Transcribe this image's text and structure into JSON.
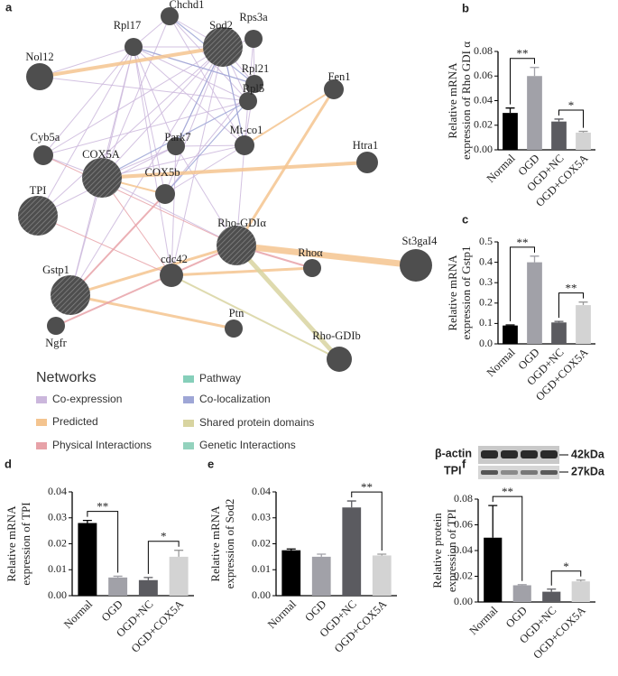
{
  "network": {
    "label": "a",
    "nodes": [
      "Chchd1",
      "Rpl17",
      "Sod2",
      "Rps3a",
      "Rpl21",
      "Rpl5",
      "Nol12",
      "Fen1",
      "Cyb5a",
      "COX5A",
      "Park7",
      "Mt-co1",
      "Htra1",
      "COX5b",
      "TPI",
      "Rho-GDIα",
      "St3gaI4",
      "Rhoα",
      "cdc42",
      "Gstp1",
      "Ptn",
      "Ngfr",
      "Rho-GDIb"
    ],
    "legend_title": "Networks",
    "legend": [
      {
        "name": "Co-expression",
        "color": "#cbb7dc"
      },
      {
        "name": "Predicted",
        "color": "#f4c48f"
      },
      {
        "name": "Physical Interactions",
        "color": "#e7a2a8"
      },
      {
        "name": "Pathway",
        "color": "#86cfba"
      },
      {
        "name": "Co-localization",
        "color": "#9ea6d6"
      },
      {
        "name": "Shared protein domains",
        "color": "#d8d4a0"
      },
      {
        "name": "Genetic Interactions",
        "color": "#93d2bd"
      }
    ]
  },
  "western_blot": {
    "bands": [
      "β-actin",
      "TPI"
    ],
    "sizes": [
      "42kDa",
      "27kDa"
    ]
  },
  "chart_data": [
    {
      "type": "bar",
      "label": "b",
      "y_label": [
        "Relative mRNA",
        "expression of Rho GDI α"
      ],
      "categories": [
        "Normal",
        "OGD",
        "OGD+NC",
        "OGD+COX5A"
      ],
      "values": [
        0.03,
        0.06,
        0.023,
        0.014
      ],
      "errors": [
        0.004,
        0.007,
        0.002,
        0.001
      ],
      "colors": [
        "#000000",
        "#a1a1a8",
        "#5b5b60",
        "#d3d3d3"
      ],
      "ylim": [
        0,
        0.08
      ],
      "yticks": [
        {
          "value": 0,
          "label": "0.00"
        },
        {
          "value": 0.02,
          "label": "0.02"
        },
        {
          "value": 0.04,
          "label": "0.04"
        },
        {
          "value": 0.06,
          "label": "0.06"
        },
        {
          "value": 0.08,
          "label": "0.08"
        }
      ],
      "annotations": [
        {
          "text": "**",
          "between": [
            "Normal",
            "OGD"
          ]
        },
        {
          "text": "*",
          "between": [
            "OGD+NC",
            "OGD+COX5A"
          ]
        }
      ]
    },
    {
      "type": "bar",
      "label": "c",
      "y_label": [
        "Relative mRNA",
        "expression of Gstp1"
      ],
      "categories": [
        "Normal",
        "OGD",
        "OGD+NC",
        "OGD+COX5A"
      ],
      "values": [
        0.09,
        0.4,
        0.105,
        0.19
      ],
      "errors": [
        0.003,
        0.03,
        0.005,
        0.015
      ],
      "colors": [
        "#000000",
        "#a1a1a8",
        "#5b5b60",
        "#d3d3d3"
      ],
      "ylim": [
        0,
        0.5
      ],
      "yticks": [
        {
          "value": 0,
          "label": "0.0"
        },
        {
          "value": 0.1,
          "label": "0.1"
        },
        {
          "value": 0.2,
          "label": "0.2"
        },
        {
          "value": 0.3,
          "label": "0.3"
        },
        {
          "value": 0.4,
          "label": "0.4"
        },
        {
          "value": 0.5,
          "label": "0.5"
        }
      ],
      "annotations": [
        {
          "text": "**",
          "between": [
            "Normal",
            "OGD"
          ]
        },
        {
          "text": "**",
          "between": [
            "OGD+NC",
            "OGD+COX5A"
          ]
        }
      ]
    },
    {
      "type": "bar",
      "label": "d",
      "y_label": [
        "Relative mRNA",
        "expression of TPI"
      ],
      "categories": [
        "Normal",
        "OGD",
        "OGD+NC",
        "OGD+COX5A"
      ],
      "values": [
        0.028,
        0.007,
        0.006,
        0.015
      ],
      "errors": [
        0.001,
        0.0005,
        0.001,
        0.0025
      ],
      "colors": [
        "#000000",
        "#a1a1a8",
        "#5b5b60",
        "#d3d3d3"
      ],
      "ylim": [
        0,
        0.04
      ],
      "yticks": [
        {
          "value": 0,
          "label": "0.00"
        },
        {
          "value": 0.01,
          "label": "0.01"
        },
        {
          "value": 0.02,
          "label": "0.02"
        },
        {
          "value": 0.03,
          "label": "0.03"
        },
        {
          "value": 0.04,
          "label": "0.04"
        }
      ],
      "annotations": [
        {
          "text": "**",
          "between": [
            "Normal",
            "OGD"
          ]
        },
        {
          "text": "*",
          "between": [
            "OGD+NC",
            "OGD+COX5A"
          ]
        }
      ]
    },
    {
      "type": "bar",
      "label": "e",
      "y_label": [
        "Relative mRNA",
        "expression of Sod2"
      ],
      "categories": [
        "Normal",
        "OGD",
        "OGD+NC",
        "OGD+COX5A"
      ],
      "values": [
        0.0175,
        0.015,
        0.034,
        0.0155
      ],
      "errors": [
        0.0005,
        0.001,
        0.0025,
        0.0005
      ],
      "colors": [
        "#000000",
        "#a1a1a8",
        "#5b5b60",
        "#d3d3d3"
      ],
      "ylim": [
        0,
        0.04
      ],
      "yticks": [
        {
          "value": 0,
          "label": "0.00"
        },
        {
          "value": 0.01,
          "label": "0.01"
        },
        {
          "value": 0.02,
          "label": "0.02"
        },
        {
          "value": 0.03,
          "label": "0.03"
        },
        {
          "value": 0.04,
          "label": "0.04"
        }
      ],
      "annotations": [
        {
          "text": "**",
          "between": [
            "OGD+NC",
            "OGD+COX5A"
          ]
        }
      ]
    },
    {
      "type": "bar",
      "label": "f",
      "y_label": [
        "Relative protein",
        "expression of TPI"
      ],
      "categories": [
        "Normal",
        "OGD",
        "OGD+NC",
        "OGD+COX5A"
      ],
      "values": [
        0.05,
        0.013,
        0.008,
        0.016
      ],
      "errors": [
        0.025,
        0.0005,
        0.002,
        0.001
      ],
      "colors": [
        "#000000",
        "#a1a1a8",
        "#5b5b60",
        "#d3d3d3"
      ],
      "ylim": [
        0,
        0.08
      ],
      "yticks": [
        {
          "value": 0,
          "label": "0.00"
        },
        {
          "value": 0.02,
          "label": "0.02"
        },
        {
          "value": 0.04,
          "label": "0.04"
        },
        {
          "value": 0.06,
          "label": "0.06"
        },
        {
          "value": 0.08,
          "label": "0.08"
        }
      ],
      "annotations": [
        {
          "text": "**",
          "between": [
            "Normal",
            "OGD"
          ]
        },
        {
          "text": "*",
          "between": [
            "OGD+NC",
            "OGD+COX5A"
          ]
        }
      ]
    }
  ]
}
